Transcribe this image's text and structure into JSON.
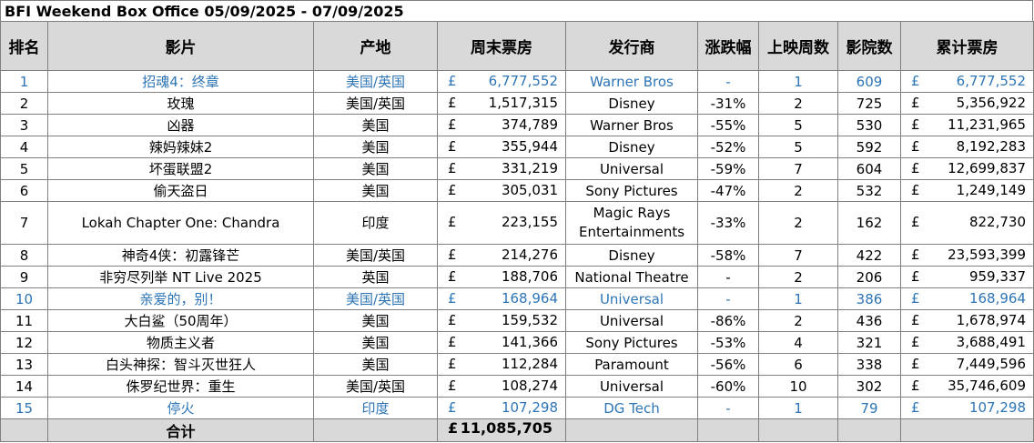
{
  "title": "BFI Weekend Box Office 05/09/2025 - 07/09/2025",
  "headers": {
    "rank": "排名",
    "film": "影片",
    "origin": "产地",
    "weekend_gross": "周末票房",
    "distributor": "发行商",
    "change": "涨跌幅",
    "weeks": "上映周数",
    "cinemas": "影院数",
    "total_gross": "累计票房"
  },
  "currency_symbol": "£",
  "highlight_color": "#2e75b6",
  "rows": [
    {
      "rank": "1",
      "film": "招魂4：终章",
      "origin": "美国/英国",
      "weekend": "6,777,552",
      "distributor": "Warner Bros",
      "change": "-",
      "weeks": "1",
      "cinemas": "609",
      "total": "6,777,552",
      "highlight": true
    },
    {
      "rank": "2",
      "film": "玫瑰",
      "origin": "美国/英国",
      "weekend": "1,517,315",
      "distributor": "Disney",
      "change": "-31%",
      "weeks": "2",
      "cinemas": "725",
      "total": "5,356,922",
      "highlight": false
    },
    {
      "rank": "3",
      "film": "凶器",
      "origin": "美国",
      "weekend": "374,789",
      "distributor": "Warner Bros",
      "change": "-55%",
      "weeks": "5",
      "cinemas": "530",
      "total": "11,231,965",
      "highlight": false
    },
    {
      "rank": "4",
      "film": "辣妈辣妹2",
      "origin": "美国",
      "weekend": "355,944",
      "distributor": "Disney",
      "change": "-52%",
      "weeks": "5",
      "cinemas": "592",
      "total": "8,192,283",
      "highlight": false
    },
    {
      "rank": "5",
      "film": "坏蛋联盟2",
      "origin": "美国",
      "weekend": "331,219",
      "distributor": "Universal",
      "change": "-59%",
      "weeks": "7",
      "cinemas": "604",
      "total": "12,699,837",
      "highlight": false
    },
    {
      "rank": "6",
      "film": "偷天盗日",
      "origin": "美国",
      "weekend": "305,031",
      "distributor": "Sony Pictures",
      "change": "-47%",
      "weeks": "2",
      "cinemas": "532",
      "total": "1,249,149",
      "highlight": false
    },
    {
      "rank": "7",
      "film": "Lokah Chapter One: Chandra",
      "origin": "印度",
      "weekend": "223,155",
      "distributor": "Magic Rays Entertainments",
      "change": "-33%",
      "weeks": "2",
      "cinemas": "162",
      "total": "822,730",
      "highlight": false,
      "tall": true
    },
    {
      "rank": "8",
      "film": "神奇4侠：初露锋芒",
      "origin": "美国/英国",
      "weekend": "214,276",
      "distributor": "Disney",
      "change": "-58%",
      "weeks": "7",
      "cinemas": "422",
      "total": "23,593,399",
      "highlight": false
    },
    {
      "rank": "9",
      "film": "非穷尽列举 NT Live 2025",
      "origin": "英国",
      "weekend": "188,706",
      "distributor": "National Theatre",
      "change": "-",
      "weeks": "2",
      "cinemas": "206",
      "total": "959,337",
      "highlight": false
    },
    {
      "rank": "10",
      "film": "亲爱的，别！",
      "origin": "美国/英国",
      "weekend": "168,964",
      "distributor": "Universal",
      "change": "-",
      "weeks": "1",
      "cinemas": "386",
      "total": "168,964",
      "highlight": true
    },
    {
      "rank": "11",
      "film": "大白鲨（50周年）",
      "origin": "美国",
      "weekend": "159,532",
      "distributor": "Universal",
      "change": "-86%",
      "weeks": "2",
      "cinemas": "436",
      "total": "1,678,974",
      "highlight": false
    },
    {
      "rank": "12",
      "film": "物质主义者",
      "origin": "美国",
      "weekend": "141,366",
      "distributor": "Sony Pictures",
      "change": "-53%",
      "weeks": "4",
      "cinemas": "321",
      "total": "3,688,491",
      "highlight": false
    },
    {
      "rank": "13",
      "film": "白头神探：智斗灭世狂人",
      "origin": "美国",
      "weekend": "112,284",
      "distributor": "Paramount",
      "change": "-56%",
      "weeks": "6",
      "cinemas": "338",
      "total": "7,449,596",
      "highlight": false
    },
    {
      "rank": "14",
      "film": "侏罗纪世界：重生",
      "origin": "美国/英国",
      "weekend": "108,274",
      "distributor": "Universal",
      "change": "-60%",
      "weeks": "10",
      "cinemas": "302",
      "total": "35,746,609",
      "highlight": false
    },
    {
      "rank": "15",
      "film": "停火",
      "origin": "印度",
      "weekend": "107,298",
      "distributor": "DG Tech",
      "change": "-",
      "weeks": "1",
      "cinemas": "79",
      "total": "107,298",
      "highlight": true
    }
  ],
  "footer": {
    "label": "合计",
    "weekend_total": "11,085,705"
  }
}
